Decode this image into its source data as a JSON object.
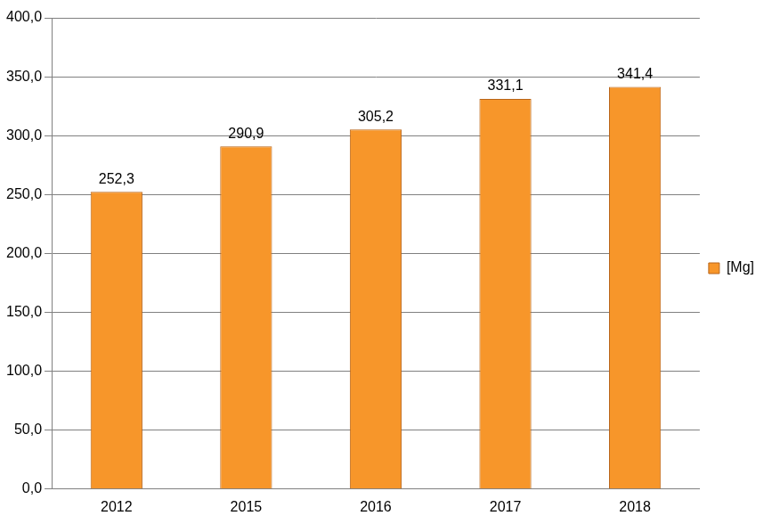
{
  "chart_data": {
    "type": "bar",
    "categories": [
      "2012",
      "2015",
      "2016",
      "2017",
      "2018"
    ],
    "series": [
      {
        "name": "[Mg]",
        "color": "#f7962a",
        "values": [
          252.3,
          290.9,
          305.2,
          331.1,
          341.4
        ],
        "value_labels": [
          "252,3",
          "290,9",
          "305,2",
          "331,1",
          "341,4"
        ]
      }
    ],
    "ylim": [
      0,
      400
    ],
    "yticks": [
      {
        "value": 0,
        "label": "0,0"
      },
      {
        "value": 50,
        "label": "50,0"
      },
      {
        "value": 100,
        "label": "100,0"
      },
      {
        "value": 150,
        "label": "150,0"
      },
      {
        "value": 200,
        "label": "200,0"
      },
      {
        "value": 250,
        "label": "250,0"
      },
      {
        "value": 300,
        "label": "300,0"
      },
      {
        "value": 350,
        "label": "350,0"
      },
      {
        "value": 400,
        "label": "400,0"
      }
    ],
    "grid": true,
    "legend": "right",
    "data_labels": true
  }
}
